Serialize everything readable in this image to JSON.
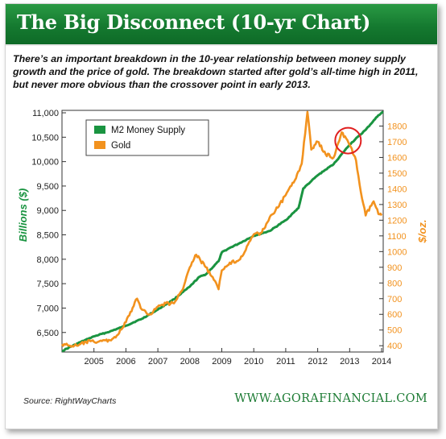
{
  "banner": {
    "title": "The Big Disconnect (10-yr Chart)"
  },
  "subtitle": "There’s an important breakdown in the 10-year relationship between money supply growth and the price of gold. The breakdown started after gold’s all-time high in 2011, but never more obvious than the crossover point in early 2013.",
  "footer": {
    "source": "Source: RightWayCharts",
    "brand": "WWW.AGORAFINANCIAL.COM"
  },
  "colors": {
    "m2": "#1a9441",
    "gold": "#f2921e",
    "highlight": "#e02020",
    "brand_green": "#1e7c35"
  },
  "chart_data": {
    "type": "line",
    "title": "",
    "xlabel": "",
    "ylabel": "Billions ($)",
    "y2label": "$/oz.",
    "xlim": [
      2004.0,
      2014.05
    ],
    "ylim": [
      6100,
      11050
    ],
    "y2lim": [
      360,
      1900
    ],
    "x_ticks": [
      "2005",
      "2006",
      "2007",
      "2008",
      "2009",
      "2010",
      "2011",
      "2012",
      "2013",
      "2014"
    ],
    "y_ticks": [
      "6,500",
      "7,000",
      "7,500",
      "8,000",
      "8,500",
      "9,000",
      "9,500",
      "10,000",
      "10,500",
      "11,000"
    ],
    "y2_ticks": [
      "400",
      "500",
      "600",
      "700",
      "800",
      "900",
      "1000",
      "1100",
      "1200",
      "1300",
      "1400",
      "1500",
      "1600",
      "1700",
      "1800"
    ],
    "legend_position": "top-left",
    "grid": false,
    "annotation": "circle at crossover point, late 2012",
    "series": [
      {
        "name": "M2 Money Supply",
        "axis": "left",
        "x": [
          2004.0,
          2004.5,
          2005.0,
          2005.5,
          2006.0,
          2006.5,
          2007.0,
          2007.5,
          2008.0,
          2008.3,
          2008.5,
          2008.9,
          2009.0,
          2009.3,
          2009.5,
          2010.0,
          2010.5,
          2011.0,
          2011.4,
          2011.55,
          2011.8,
          2012.0,
          2012.5,
          2013.0,
          2013.5,
          2013.9,
          2014.05
        ],
        "y": [
          6120,
          6280,
          6420,
          6520,
          6640,
          6780,
          6970,
          7180,
          7440,
          7640,
          7690,
          7960,
          8140,
          8250,
          8310,
          8480,
          8580,
          8800,
          9050,
          9450,
          9600,
          9720,
          9950,
          10350,
          10650,
          10950,
          11020
        ]
      },
      {
        "name": "Gold",
        "axis": "right",
        "x": [
          2004.0,
          2004.25,
          2004.5,
          2004.75,
          2005.0,
          2005.25,
          2005.5,
          2005.75,
          2006.0,
          2006.35,
          2006.5,
          2006.75,
          2007.0,
          2007.25,
          2007.5,
          2007.75,
          2008.0,
          2008.2,
          2008.5,
          2008.75,
          2008.9,
          2009.0,
          2009.25,
          2009.5,
          2009.75,
          2010.0,
          2010.25,
          2010.5,
          2010.75,
          2011.0,
          2011.25,
          2011.5,
          2011.68,
          2011.8,
          2012.0,
          2012.25,
          2012.5,
          2012.75,
          2013.0,
          2013.2,
          2013.35,
          2013.5,
          2013.75,
          2013.9,
          2014.0
        ],
        "y": [
          410,
          400,
          400,
          425,
          425,
          430,
          435,
          470,
          550,
          700,
          630,
          600,
          650,
          670,
          670,
          750,
          900,
          980,
          900,
          820,
          760,
          880,
          930,
          940,
          1010,
          1110,
          1120,
          1220,
          1280,
          1360,
          1440,
          1560,
          1890,
          1650,
          1700,
          1620,
          1600,
          1760,
          1680,
          1580,
          1380,
          1230,
          1320,
          1240,
          1230
        ]
      }
    ]
  }
}
